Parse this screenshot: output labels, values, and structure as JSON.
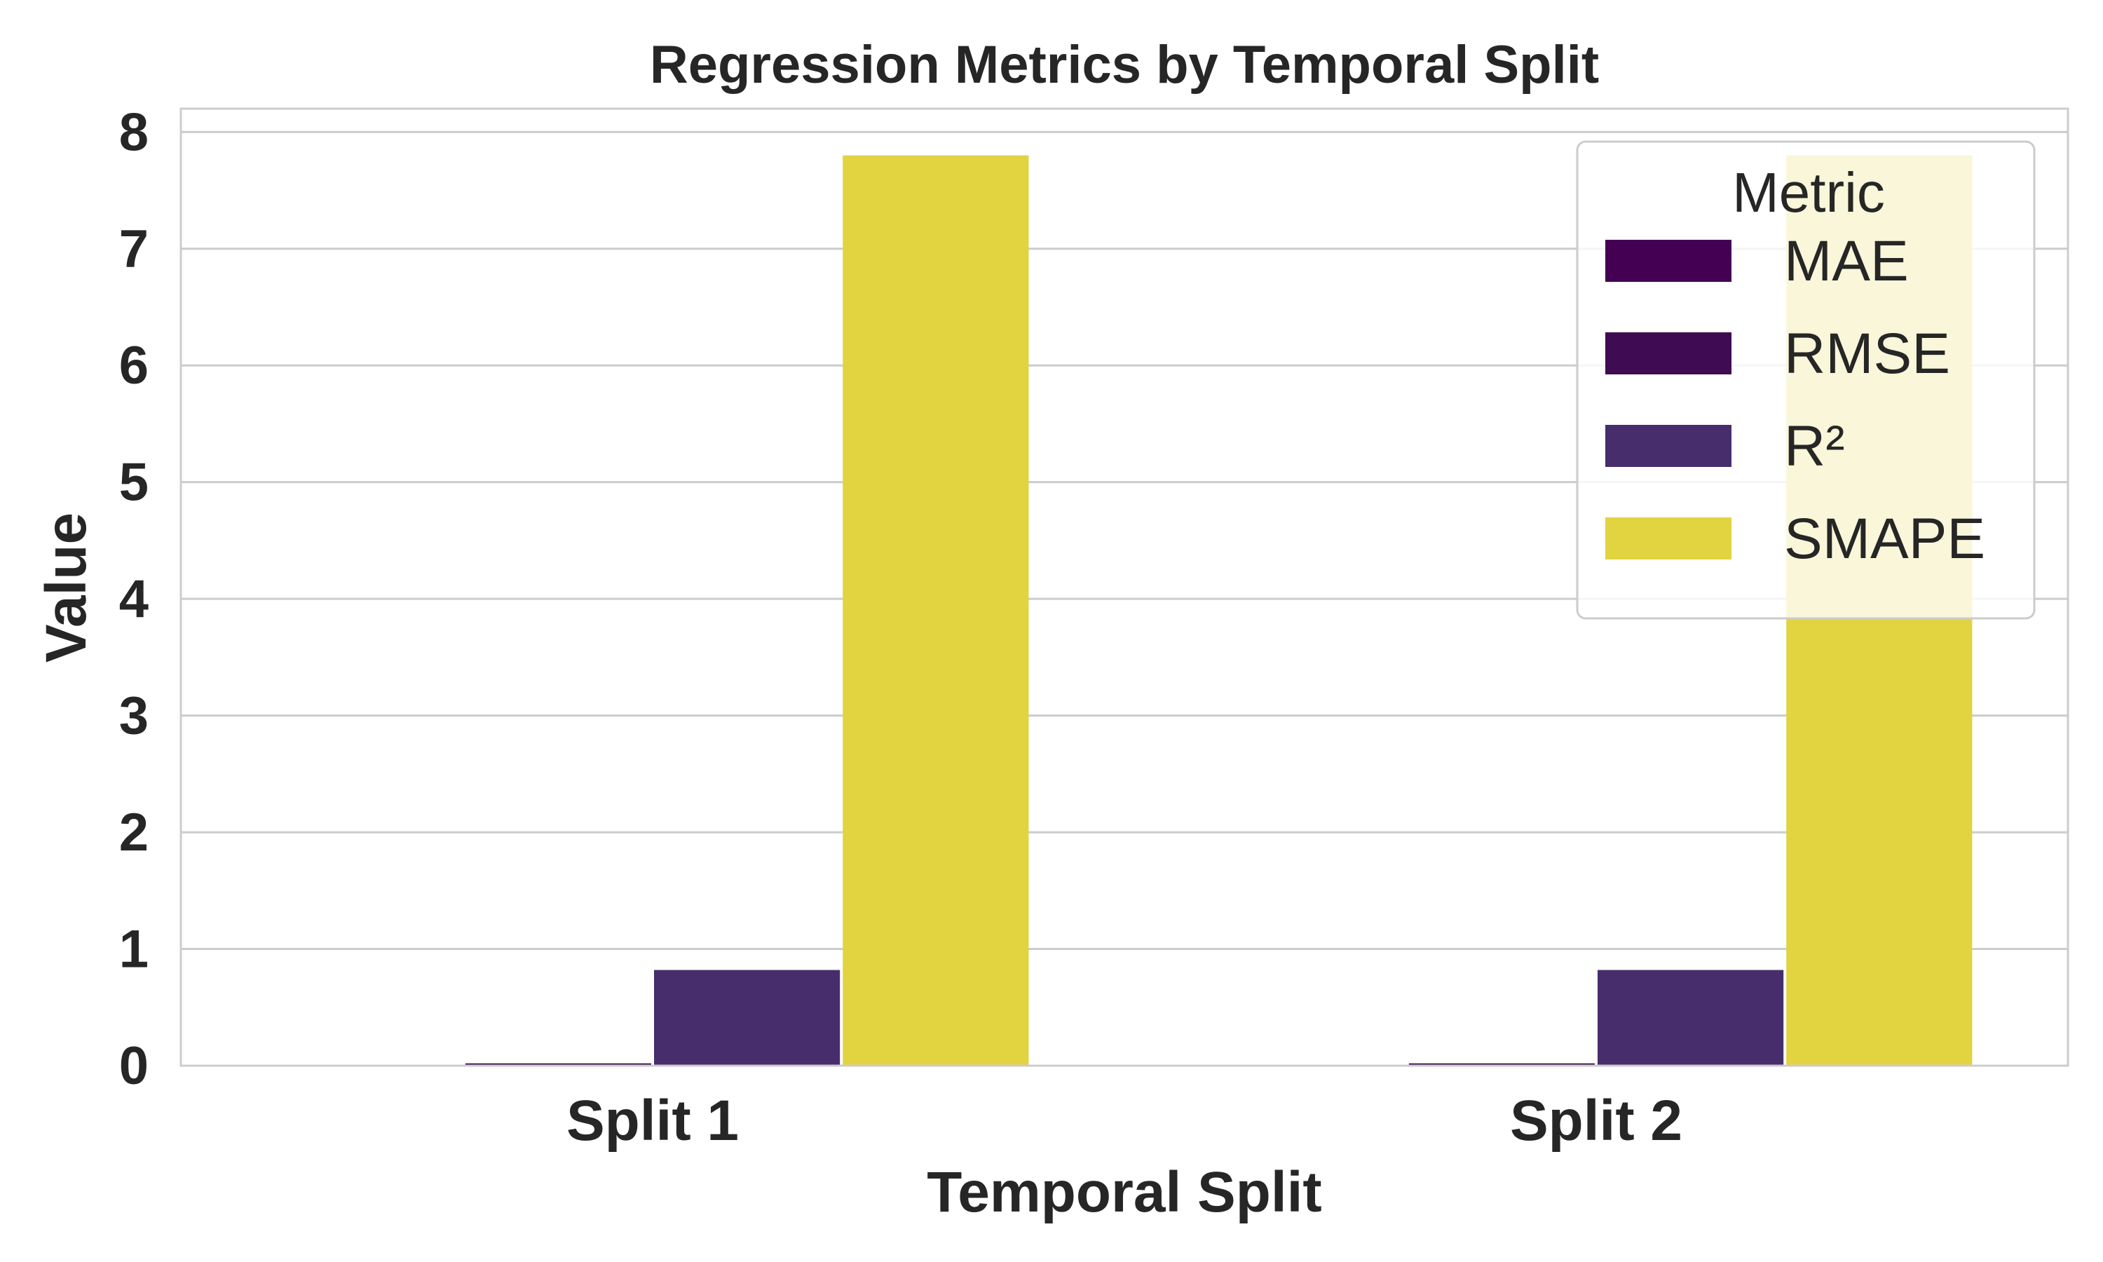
{
  "chart_data": {
    "type": "bar",
    "title": "Regression Metrics by Temporal Split",
    "xlabel": "Temporal Split",
    "ylabel": "Value",
    "categories": [
      "Split 1",
      "Split 2"
    ],
    "ylim": [
      0,
      8.2
    ],
    "yticks": [
      0,
      1,
      2,
      3,
      4,
      5,
      6,
      7,
      8
    ],
    "ytick_labels": [
      "0",
      "1",
      "2",
      "3",
      "4",
      "5",
      "6",
      "7",
      "8"
    ],
    "grid": true,
    "legend": {
      "title": "Metric",
      "placement": "top-right"
    },
    "series": [
      {
        "name": "MAE",
        "values": [
          0.005,
          0.005
        ],
        "color": "#440154"
      },
      {
        "name": "RMSE",
        "values": [
          0.02,
          0.02
        ],
        "color": "#3f0b52"
      },
      {
        "name": "R²",
        "values": [
          0.82,
          0.82
        ],
        "color": "#472d6c"
      },
      {
        "name": "SMAPE",
        "values": [
          7.8,
          7.8
        ],
        "color": "#e2d341"
      }
    ]
  }
}
